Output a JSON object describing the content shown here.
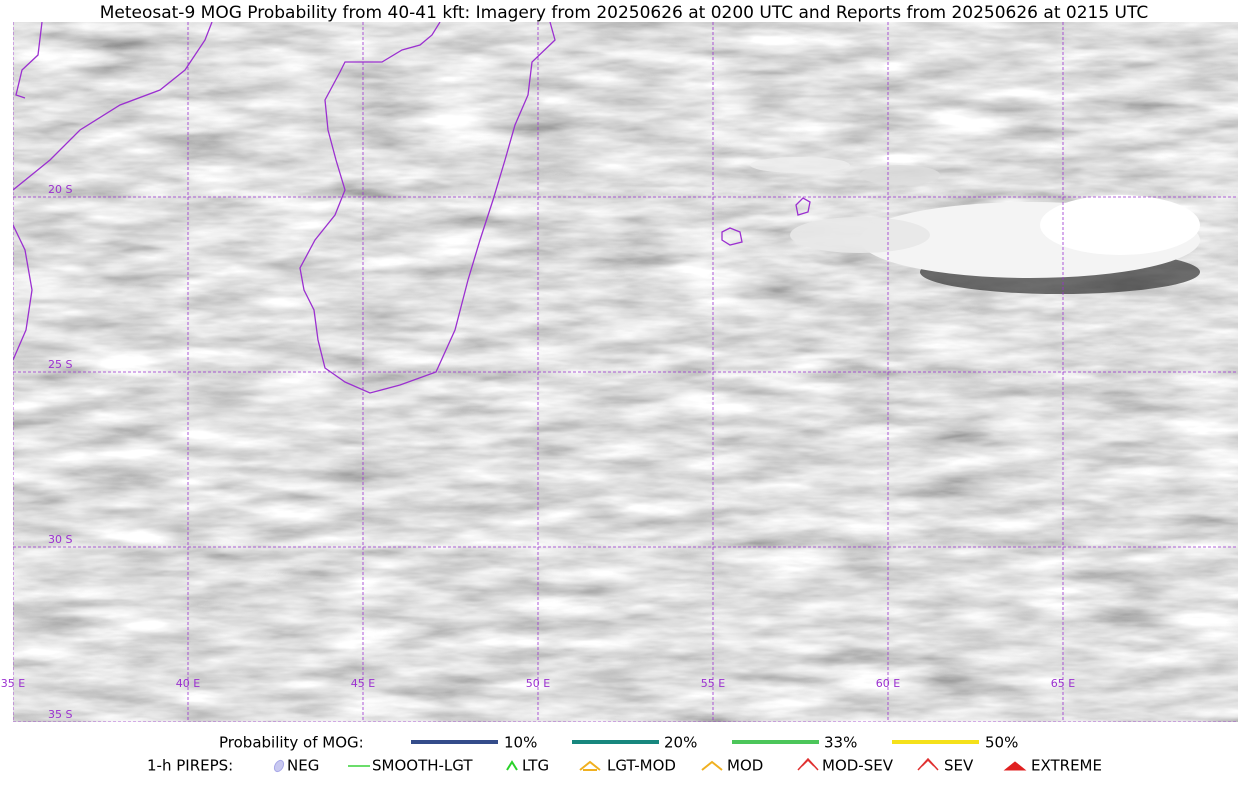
{
  "title": "Meteosat-9 MOG Probability from 40-41 kft: Imagery from 20250626 at 0200 UTC and Reports from 20250626 at 0215 UTC",
  "map": {
    "lon_labels": [
      "35 E",
      "40 E",
      "45 E",
      "50 E",
      "55 E",
      "60 E",
      "65 E"
    ],
    "lat_labels": [
      "20 S",
      "25 S",
      "30 S",
      "35 S"
    ]
  },
  "legend": {
    "mog": {
      "title": "Probability of MOG:",
      "items": [
        "10%",
        "20%",
        "33%",
        "50%"
      ]
    },
    "pireps": {
      "title": "1-h PIREPS:",
      "items": [
        "NEG",
        "SMOOTH-LGT",
        "LTG",
        "LGT-MOD",
        "MOD",
        "MOD-SEV",
        "SEV",
        "EXTREME"
      ]
    }
  }
}
